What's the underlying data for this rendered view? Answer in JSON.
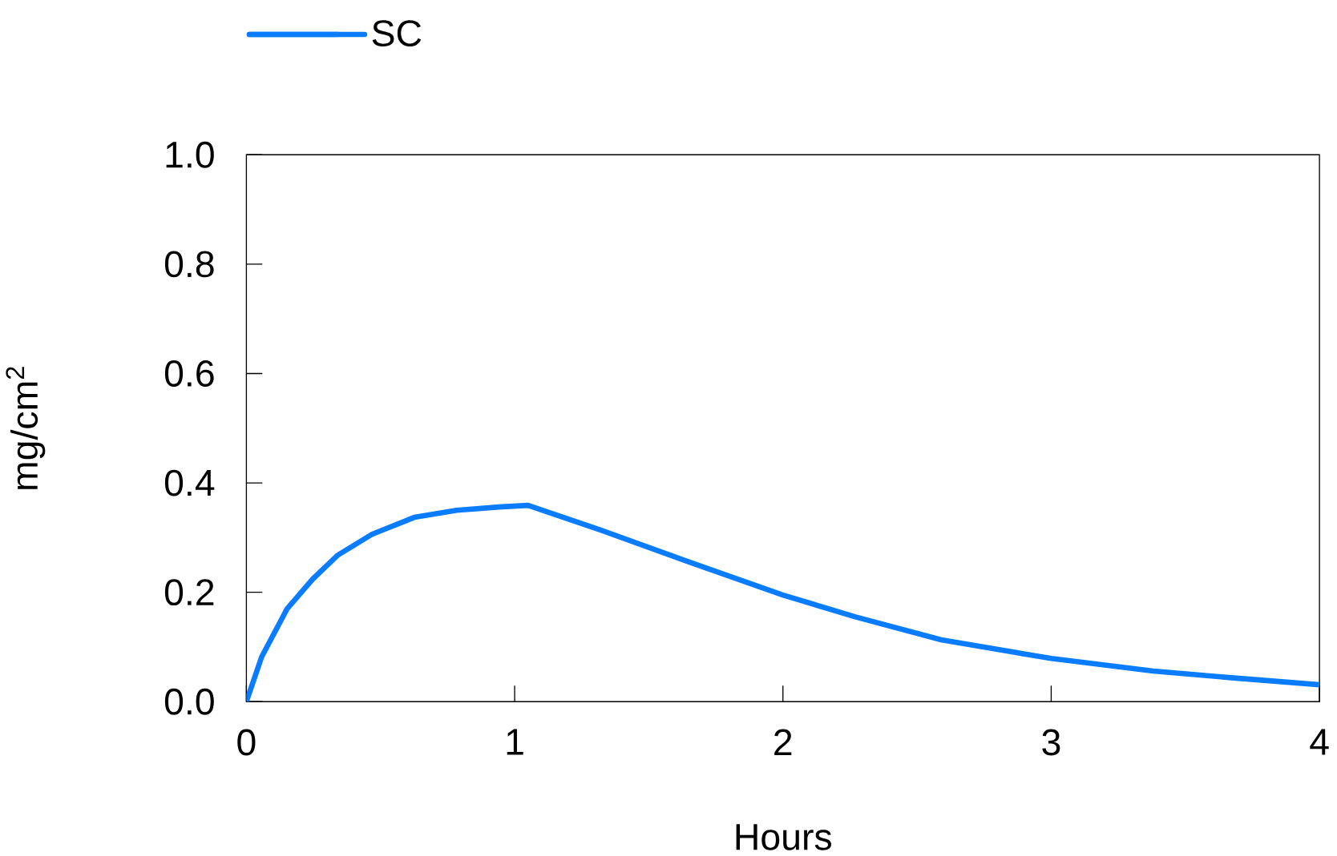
{
  "chart_data": {
    "type": "line",
    "xlabel": "Hours",
    "ylabel": "mg/cm$^{2}$",
    "legend": "top left",
    "marker": "none",
    "line_style": "solid",
    "grid": false,
    "xlim": [
      0,
      4
    ],
    "ylim": [
      0,
      1
    ],
    "xticks": [
      0,
      1,
      2,
      3,
      4
    ],
    "yticks": [
      {
        "value": 0,
        "label": "0.0"
      },
      {
        "value": 0.2,
        "label": "0.2"
      },
      {
        "value": 0.4,
        "label": "0.4"
      },
      {
        "value": 0.6,
        "label": "0.6"
      },
      {
        "value": 0.8,
        "label": "0.8"
      },
      {
        "value": 1,
        "label": "1.0"
      }
    ],
    "series": [
      {
        "name": "SC",
        "color": "#0a7cff",
        "x": [
          0,
          0.057,
          0.152,
          0.247,
          0.341,
          0.468,
          0.626,
          0.784,
          0.942,
          1.05,
          1.32,
          1.64,
          2.0,
          2.27,
          2.59,
          3.0,
          3.38,
          3.69,
          4.0
        ],
        "values": [
          0,
          0.082,
          0.17,
          0.224,
          0.268,
          0.306,
          0.337,
          0.35,
          0.356,
          0.359,
          0.314,
          0.257,
          0.195,
          0.155,
          0.113,
          0.079,
          0.056,
          0.043,
          0.031
        ]
      }
    ]
  }
}
